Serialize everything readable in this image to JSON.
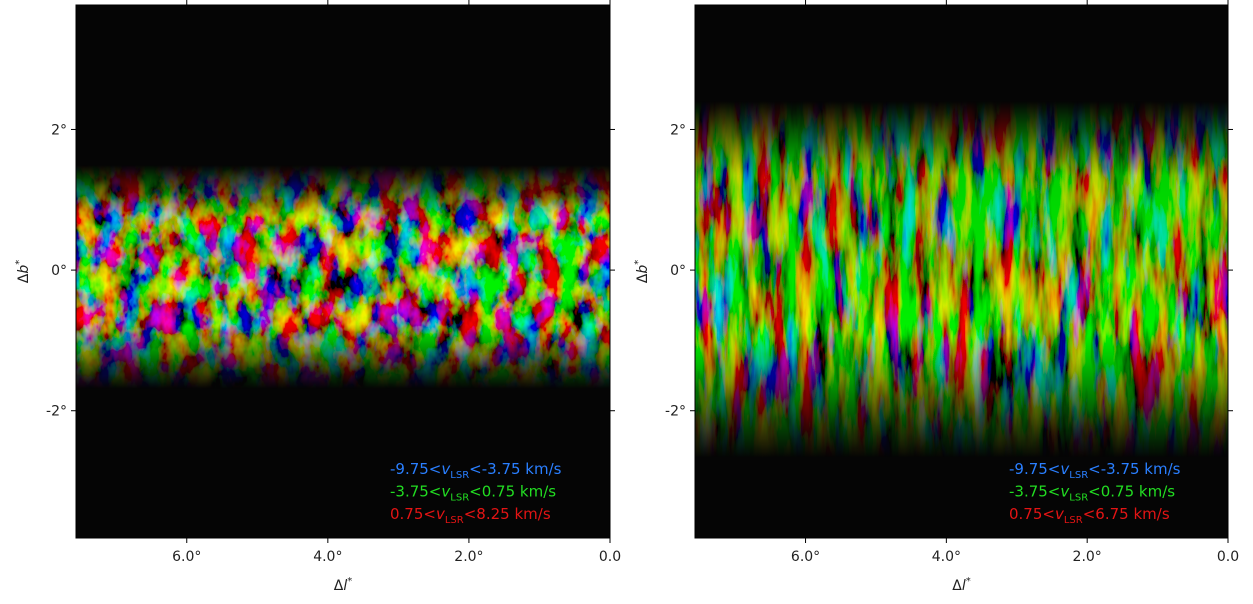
{
  "chart_data": [
    {
      "type": "image",
      "xlabel": {
        "prefix": "Δ",
        "var": "l",
        "sup": "*"
      },
      "ylabel": {
        "prefix": "Δ",
        "var": "b",
        "sup": "*"
      },
      "xlim": [
        7.57,
        0
      ],
      "ylim": [
        -3.81,
        3.77
      ],
      "xticks": [
        {
          "value": 6,
          "label": "6.0°"
        },
        {
          "value": 4,
          "label": "4.0°"
        },
        {
          "value": 2,
          "label": "2.0°"
        },
        {
          "value": 0,
          "label": "0.0"
        }
      ],
      "yticks": [
        {
          "value": 2,
          "label": "2°"
        },
        {
          "value": 0,
          "label": "0°"
        },
        {
          "value": -2,
          "label": "-2°"
        }
      ],
      "legend": [
        {
          "prefix": "-9.75<",
          "var": "v",
          "sub": "LSR",
          "suffix": "<-3.75 km/s",
          "color": "#2a7fff"
        },
        {
          "prefix": "-3.75<",
          "var": "v",
          "sub": "LSR",
          "suffix": "<0.75 km/s",
          "color": "#22dd22"
        },
        {
          "prefix": "0.75<",
          "var": "v",
          "sub": "LSR",
          "suffix": "<8.25 km/s",
          "color": "#e31414"
        }
      ]
    },
    {
      "type": "image",
      "xlabel": {
        "prefix": "Δ",
        "var": "l",
        "sup": "*"
      },
      "ylabel": {
        "prefix": "Δ",
        "var": "b",
        "sup": "*"
      },
      "xlim": [
        7.57,
        0
      ],
      "ylim": [
        -3.81,
        3.77
      ],
      "xticks": [
        {
          "value": 6,
          "label": "6.0°"
        },
        {
          "value": 4,
          "label": "4.0°"
        },
        {
          "value": 2,
          "label": "2.0°"
        },
        {
          "value": 0,
          "label": "0.0"
        }
      ],
      "yticks": [
        {
          "value": 2,
          "label": "2°"
        },
        {
          "value": 0,
          "label": "0°"
        },
        {
          "value": -2,
          "label": "-2°"
        }
      ],
      "legend": [
        {
          "prefix": "-9.75<",
          "var": "v",
          "sub": "LSR",
          "suffix": "<-3.75 km/s",
          "color": "#2a7fff"
        },
        {
          "prefix": "-3.75<",
          "var": "v",
          "sub": "LSR",
          "suffix": "<0.75 km/s",
          "color": "#22dd22"
        },
        {
          "prefix": "0.75<",
          "var": "v",
          "sub": "LSR",
          "suffix": "<6.75 km/s",
          "color": "#e31414"
        }
      ]
    }
  ]
}
